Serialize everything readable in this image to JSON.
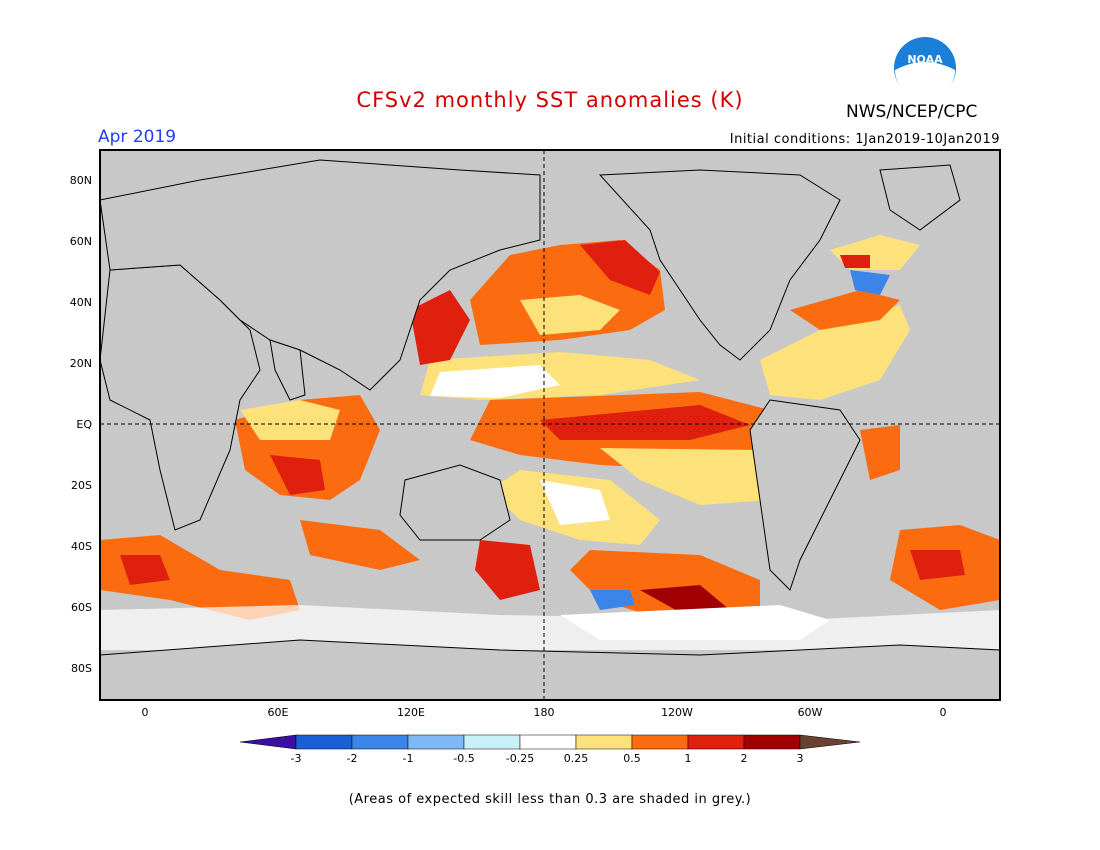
{
  "title": "CFSv2 monthly SST anomalies (K)",
  "month": "Apr 2019",
  "initial_conditions": "Initial conditions: 1Jan2019-10Jan2019",
  "agency": "NWS/NCEP/CPC",
  "logo_text": "NOAA",
  "note": "(Areas of expected skill less than 0.3 are shaded in grey.)",
  "lat_labels": [
    "80N",
    "60N",
    "40N",
    "20N",
    "EQ",
    "20S",
    "40S",
    "60S",
    "80S"
  ],
  "lon_labels": [
    "0",
    "60E",
    "120E",
    "180",
    "120W",
    "60W",
    "0"
  ],
  "colorbar": {
    "labels": [
      "-3",
      "-2",
      "-1",
      "-0.5",
      "-0.25",
      "0.25",
      "0.5",
      "1",
      "2",
      "3"
    ],
    "colors": [
      "#3a0fa3",
      "#1a5fd6",
      "#3a84ea",
      "#7fb8f4",
      "#c8f0f8",
      "#ffffff",
      "#fde17a",
      "#fb6c10",
      "#e0200e",
      "#a00000",
      "#6b4131"
    ]
  },
  "colors": {
    "ocean_grey": "#c8c8c8",
    "land": "#c8c8c8",
    "title_red": "#d40000",
    "month_blue": "#1f3ff0"
  }
}
